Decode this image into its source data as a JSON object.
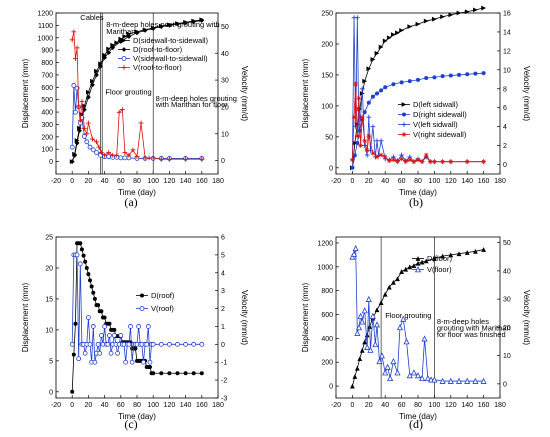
{
  "figure": {
    "panels": [
      {
        "id": "a",
        "label": "(a)"
      },
      {
        "id": "b",
        "label": "(b)"
      },
      {
        "id": "c",
        "label": "(c)"
      },
      {
        "id": "d",
        "label": "(d)"
      }
    ]
  },
  "chart_data": [
    {
      "id": "a",
      "type": "line",
      "panel_label": "(a)",
      "xlabel": "Time (day)",
      "ylabel": "Displacement (mm)",
      "y2label": "Velocity (mm/d)",
      "xlim": [
        -20,
        180
      ],
      "xticks": [
        -20,
        0,
        20,
        40,
        60,
        80,
        100,
        120,
        140,
        160,
        180
      ],
      "ylim": [
        -100,
        1200
      ],
      "yticks": [
        0,
        100,
        200,
        300,
        400,
        500,
        600,
        700,
        800,
        900,
        1000,
        1100,
        1200
      ],
      "y2lim": [
        -5,
        55
      ],
      "y2ticks": [
        0,
        10,
        20,
        30,
        40,
        50
      ],
      "vlines": [
        35,
        37,
        100
      ],
      "annotations": [
        {
          "text": "Cables",
          "x": 10,
          "y": 1145
        },
        {
          "text": "8-m-deep holes post-grouting with",
          "x": 42,
          "y": 1085
        },
        {
          "text": "Marithan",
          "x": 42,
          "y": 1030
        },
        {
          "text": "Floor grouting",
          "x": 41,
          "y": 540
        },
        {
          "text": "8-m-deep holes grouting",
          "x": 103,
          "y": 490
        },
        {
          "text": "with Marithan for floor",
          "x": 103,
          "y": 440
        }
      ],
      "series": [
        {
          "name": "D(sidewall-to-sidewall)",
          "axis": "left",
          "color": "#000000",
          "marker": "triangle-right",
          "x": [
            0,
            3,
            6,
            9,
            12,
            15,
            20,
            25,
            30,
            35,
            40,
            45,
            50,
            55,
            60,
            65,
            70,
            80,
            90,
            100,
            110,
            120,
            130,
            140,
            150,
            160
          ],
          "values": [
            0,
            60,
            170,
            270,
            380,
            450,
            560,
            650,
            730,
            790,
            860,
            910,
            940,
            960,
            990,
            1010,
            1030,
            1050,
            1065,
            1080,
            1095,
            1105,
            1115,
            1125,
            1135,
            1145
          ]
        },
        {
          "name": "D(roof-to-floor)",
          "axis": "left",
          "color": "#000000",
          "marker": "diamond",
          "x": [
            0,
            3,
            6,
            9,
            12,
            15,
            20,
            25,
            30,
            35,
            40,
            45,
            50,
            60,
            70,
            80,
            90,
            100,
            110,
            120,
            130,
            140,
            150,
            160
          ],
          "values": [
            0,
            50,
            150,
            250,
            350,
            420,
            520,
            620,
            700,
            770,
            840,
            880,
            920,
            970,
            1010,
            1040,
            1060,
            1075,
            1090,
            1100,
            1110,
            1120,
            1130,
            1140
          ]
        },
        {
          "name": "V(sidewall-to-sidewall)",
          "axis": "right",
          "color": "#1f3fd0",
          "marker": "circle",
          "x": [
            0,
            2,
            4,
            6,
            8,
            10,
            12,
            15,
            18,
            22,
            26,
            30,
            35,
            40,
            45,
            50,
            55,
            60,
            65,
            70,
            80,
            90,
            100,
            110,
            120,
            140,
            160
          ],
          "values": [
            5,
            28,
            18,
            27,
            20,
            14,
            16,
            9,
            7,
            5,
            4,
            3,
            2,
            1.5,
            1.5,
            1.2,
            1.2,
            1,
            1,
            1,
            0.8,
            0.8,
            0.8,
            0.8,
            0.8,
            0.8,
            0.8
          ]
        },
        {
          "name": "V(roof-to-floor)",
          "axis": "right",
          "color": "#e01010",
          "marker": "plus",
          "x": [
            0,
            2,
            4,
            6,
            8,
            10,
            12,
            15,
            18,
            20,
            25,
            30,
            33,
            36,
            40,
            45,
            50,
            55,
            58,
            62,
            65,
            70,
            75,
            80,
            85,
            90,
            95,
            100,
            110,
            120,
            140,
            160
          ],
          "values": [
            45,
            48,
            38,
            42,
            20,
            15,
            22,
            12,
            10,
            14,
            8,
            7,
            5,
            3,
            2,
            3,
            2,
            2,
            18,
            19,
            3,
            2,
            4,
            1.5,
            14,
            1,
            1,
            1,
            0.5,
            0.5,
            0.5,
            0.5
          ]
        }
      ]
    },
    {
      "id": "b",
      "type": "line",
      "panel_label": "(b)",
      "xlabel": "Time (day)",
      "ylabel": "Displacement (mm)",
      "y2label": "Velocity (mm/d)",
      "xlim": [
        -20,
        180
      ],
      "xticks": [
        -20,
        0,
        20,
        40,
        60,
        80,
        100,
        120,
        140,
        160,
        180
      ],
      "ylim": [
        -10,
        250
      ],
      "yticks": [
        0,
        50,
        100,
        150,
        200,
        250
      ],
      "y2lim": [
        -1,
        16
      ],
      "y2ticks": [
        0,
        2,
        4,
        6,
        8,
        10,
        12,
        14,
        16
      ],
      "series": [
        {
          "name": "D(left sidwall)",
          "axis": "left",
          "color": "#000000",
          "marker": "triangle-right",
          "x": [
            0,
            3,
            6,
            9,
            12,
            15,
            20,
            25,
            30,
            35,
            40,
            45,
            50,
            55,
            60,
            70,
            80,
            90,
            100,
            110,
            120,
            130,
            140,
            150,
            160
          ],
          "values": [
            0,
            40,
            70,
            95,
            120,
            140,
            160,
            175,
            185,
            195,
            205,
            210,
            215,
            218,
            222,
            228,
            232,
            237,
            240,
            244,
            247,
            250,
            252,
            255,
            258
          ]
        },
        {
          "name": "D(right sidewall)",
          "axis": "left",
          "color": "#1f3fd0",
          "marker": "circle-filled",
          "x": [
            0,
            3,
            6,
            9,
            12,
            15,
            20,
            25,
            30,
            35,
            40,
            50,
            60,
            70,
            80,
            90,
            100,
            110,
            120,
            130,
            140,
            150,
            160
          ],
          "values": [
            0,
            20,
            40,
            60,
            78,
            90,
            105,
            115,
            120,
            125,
            130,
            135,
            138,
            140,
            142,
            145,
            146,
            148,
            149,
            150,
            151,
            152,
            153
          ]
        },
        {
          "name": "V(left sidwall)",
          "axis": "right",
          "color": "#1f3fd0",
          "marker": "plus",
          "x": [
            0,
            2,
            4,
            6,
            8,
            10,
            12,
            15,
            18,
            20,
            22,
            25,
            28,
            30,
            32,
            35,
            40,
            45,
            50,
            55,
            60,
            65,
            70,
            75,
            80,
            85,
            90,
            95,
            100,
            110,
            120,
            140,
            160
          ],
          "values": [
            0.5,
            15.5,
            4,
            15.5,
            3,
            5,
            8,
            2,
            1,
            5,
            1.5,
            4,
            0.8,
            2.5,
            1,
            2.5,
            0.6,
            0.5,
            0.8,
            0.4,
            1,
            0.4,
            0.8,
            0.3,
            0.6,
            0.3,
            0.8,
            0.3,
            0.3,
            0.3,
            0.3,
            0.3,
            0.3
          ]
        },
        {
          "name": "V(right sidewall)",
          "axis": "right",
          "color": "#e01010",
          "marker": "star",
          "x": [
            0,
            2,
            4,
            6,
            8,
            10,
            12,
            15,
            18,
            20,
            25,
            30,
            35,
            40,
            45,
            50,
            55,
            60,
            65,
            70,
            75,
            80,
            85,
            90,
            95,
            100,
            110,
            120,
            140,
            160
          ],
          "values": [
            0.5,
            5,
            8.5,
            3,
            7,
            2,
            5,
            2.5,
            1.5,
            3,
            1.2,
            0.8,
            1,
            0.8,
            0.4,
            0.5,
            0.3,
            0.6,
            0.3,
            0.5,
            0.3,
            0.5,
            0.3,
            1,
            0.3,
            0.3,
            0.3,
            0.3,
            0.3,
            0.3
          ]
        }
      ]
    },
    {
      "id": "c",
      "type": "line",
      "panel_label": "(c)",
      "xlabel": "Time (day)",
      "ylabel": "Displacement (mm)",
      "y2label": "Velocity (mm/d)",
      "xlim": [
        -20,
        180
      ],
      "xticks": [
        -20,
        0,
        20,
        40,
        60,
        80,
        100,
        120,
        140,
        160,
        180
      ],
      "ylim": [
        -1,
        25
      ],
      "yticks": [
        0,
        5,
        10,
        15,
        20,
        25
      ],
      "y2lim": [
        -3,
        6
      ],
      "y2ticks": [
        -3,
        -2,
        -1,
        0,
        1,
        2,
        3,
        4,
        5,
        6
      ],
      "series": [
        {
          "name": "D(roof)",
          "axis": "left",
          "color": "#000000",
          "marker": "circle-filled",
          "x": [
            0,
            2,
            4,
            6,
            8,
            10,
            12,
            14,
            16,
            18,
            20,
            22,
            24,
            26,
            28,
            30,
            32,
            34,
            36,
            38,
            40,
            42,
            44,
            46,
            48,
            50,
            52,
            54,
            56,
            58,
            60,
            62,
            64,
            66,
            68,
            70,
            72,
            74,
            76,
            78,
            80,
            82,
            84,
            86,
            88,
            90,
            92,
            94,
            96,
            98,
            100,
            110,
            120,
            130,
            140,
            150,
            160
          ],
          "values": [
            0,
            6,
            11,
            24,
            24,
            24,
            23,
            22,
            21,
            20,
            19,
            18,
            17,
            16,
            15,
            14,
            14,
            13,
            13,
            12,
            12,
            11,
            11,
            11,
            10,
            10,
            10,
            9,
            9,
            9,
            9,
            8,
            8,
            8,
            8,
            8,
            8,
            7,
            7,
            7,
            5,
            5,
            5,
            5,
            5,
            5,
            4,
            4,
            4,
            3,
            3,
            3,
            3,
            3,
            3,
            3,
            3
          ]
        },
        {
          "name": "V(roof)",
          "axis": "right",
          "color": "#1f3fd0",
          "marker": "circle",
          "x": [
            0,
            2,
            4,
            6,
            8,
            10,
            12,
            14,
            16,
            18,
            20,
            22,
            24,
            26,
            28,
            30,
            32,
            34,
            36,
            38,
            40,
            42,
            44,
            46,
            48,
            50,
            52,
            54,
            56,
            58,
            60,
            62,
            64,
            66,
            68,
            70,
            72,
            74,
            76,
            78,
            80,
            82,
            84,
            86,
            88,
            90,
            92,
            94,
            96,
            98,
            100,
            110,
            120,
            130,
            140,
            150,
            160
          ],
          "values": [
            0,
            5,
            5,
            5,
            -0.8,
            4.5,
            0,
            0,
            -0.5,
            0,
            1.5,
            0,
            -1,
            1,
            -1,
            -0.5,
            0,
            -0.5,
            0.5,
            0,
            1,
            0,
            0,
            0.5,
            -0.5,
            0,
            0.5,
            0,
            -0.5,
            0,
            0.5,
            0,
            0,
            -1,
            0,
            0,
            1,
            -1,
            0,
            0,
            0,
            1,
            0,
            0,
            -1,
            0,
            0,
            1,
            -1,
            0,
            0,
            0,
            0,
            0,
            0,
            0,
            0
          ]
        }
      ]
    },
    {
      "id": "d",
      "type": "line",
      "panel_label": "(d)",
      "xlabel": "Time (day)",
      "ylabel": "Displacement (mm)",
      "y2label": "Velocity (mm/d)",
      "xlim": [
        -20,
        180
      ],
      "xticks": [
        -20,
        0,
        20,
        40,
        60,
        80,
        100,
        120,
        140,
        160,
        180
      ],
      "ylim": [
        -100,
        1250
      ],
      "yticks": [
        0,
        200,
        400,
        600,
        800,
        1000,
        1200
      ],
      "y2lim": [
        -5,
        52
      ],
      "y2ticks": [
        0,
        10,
        20,
        30,
        40,
        50
      ],
      "vlines": [
        35,
        100
      ],
      "annotations": [
        {
          "text": "Floor grouting",
          "x": 40,
          "y": 570
        },
        {
          "text": "8-m-deep holes",
          "x": 103,
          "y": 520
        },
        {
          "text": "grouting with Marithan",
          "x": 103,
          "y": 465
        },
        {
          "text": "for floor was finished",
          "x": 103,
          "y": 410
        }
      ],
      "series": [
        {
          "name": "D(floor)",
          "axis": "left",
          "color": "#000000",
          "marker": "triangle-up",
          "x": [
            0,
            3,
            6,
            9,
            12,
            15,
            18,
            21,
            25,
            30,
            35,
            40,
            45,
            50,
            55,
            60,
            65,
            70,
            75,
            80,
            85,
            90,
            100,
            110,
            120,
            130,
            140,
            150,
            160
          ],
          "values": [
            0,
            80,
            150,
            230,
            300,
            370,
            430,
            500,
            570,
            640,
            700,
            770,
            830,
            870,
            900,
            960,
            980,
            1000,
            1010,
            1030,
            1040,
            1050,
            1070,
            1090,
            1100,
            1110,
            1120,
            1130,
            1145
          ]
        },
        {
          "name": "V(floor)",
          "axis": "right",
          "color": "#1f3fd0",
          "marker": "triangle-up-open",
          "x": [
            0,
            2,
            4,
            6,
            8,
            10,
            12,
            15,
            18,
            20,
            22,
            25,
            28,
            30,
            33,
            36,
            40,
            43,
            46,
            50,
            55,
            58,
            62,
            66,
            70,
            75,
            80,
            85,
            88,
            92,
            96,
            100,
            110,
            120,
            130,
            140,
            150,
            160
          ],
          "values": [
            45,
            46,
            48,
            18,
            20,
            24,
            22,
            26,
            13,
            30,
            12,
            24,
            14,
            21,
            8,
            10,
            4,
            6,
            2,
            8,
            4,
            20,
            23,
            15,
            3,
            4,
            3,
            2,
            16,
            2,
            1.5,
            1.5,
            1,
            1,
            1,
            1,
            1,
            1
          ]
        }
      ]
    }
  ]
}
